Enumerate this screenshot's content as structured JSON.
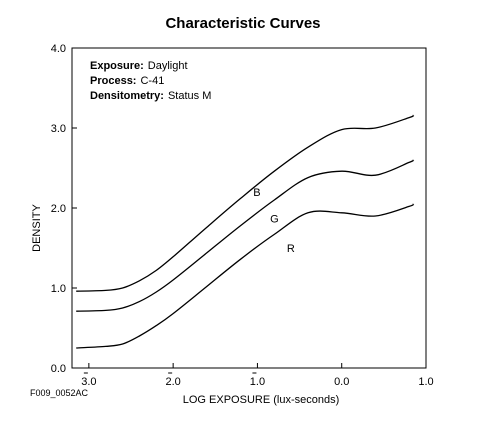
{
  "chart_data": {
    "type": "line",
    "title": "Characteristic Curves",
    "xlabel": "LOG EXPOSURE (lux-seconds)",
    "ylabel": "DENSITY",
    "xlim": [
      -3.2,
      1.0
    ],
    "ylim": [
      0.0,
      4.0
    ],
    "x_ticks": [
      -3.0,
      -2.0,
      -1.0,
      0.0,
      1.0
    ],
    "x_tick_labels": [
      "3.0",
      "2.0",
      "1.0",
      "0.0",
      "1.0"
    ],
    "x_tick_bar": [
      true,
      true,
      true,
      false,
      false
    ],
    "y_ticks": [
      0.0,
      1.0,
      2.0,
      3.0,
      4.0
    ],
    "y_tick_labels": [
      "0.0",
      "1.0",
      "2.0",
      "3.0",
      "4.0"
    ],
    "grid": false,
    "info": [
      {
        "key": "Exposure:",
        "value": "Daylight"
      },
      {
        "key": "Process:",
        "value": "C-41"
      },
      {
        "key": "Densitometry:",
        "value": "Status M"
      }
    ],
    "figure_id": "F009_0052AC",
    "series": [
      {
        "name": "B",
        "color": "#000000",
        "label_at": [
          -1.05,
          2.15
        ],
        "points": [
          [
            -3.15,
            0.96
          ],
          [
            -2.8,
            0.97
          ],
          [
            -2.6,
            1.0
          ],
          [
            -2.4,
            1.09
          ],
          [
            -2.2,
            1.22
          ],
          [
            -2.0,
            1.39
          ],
          [
            -1.6,
            1.76
          ],
          [
            -1.2,
            2.12
          ],
          [
            -0.8,
            2.46
          ],
          [
            -0.4,
            2.76
          ],
          [
            0.0,
            2.98
          ],
          [
            0.4,
            3.0
          ],
          [
            0.8,
            3.13
          ],
          [
            0.85,
            3.16
          ]
        ]
      },
      {
        "name": "G",
        "color": "#000000",
        "label_at": [
          -0.85,
          1.82
        ],
        "points": [
          [
            -3.15,
            0.71
          ],
          [
            -2.8,
            0.72
          ],
          [
            -2.6,
            0.75
          ],
          [
            -2.4,
            0.83
          ],
          [
            -2.2,
            0.95
          ],
          [
            -2.0,
            1.1
          ],
          [
            -1.6,
            1.44
          ],
          [
            -1.2,
            1.78
          ],
          [
            -0.8,
            2.1
          ],
          [
            -0.4,
            2.38
          ],
          [
            0.0,
            2.46
          ],
          [
            0.4,
            2.41
          ],
          [
            0.8,
            2.57
          ],
          [
            0.85,
            2.6
          ]
        ]
      },
      {
        "name": "R",
        "color": "#000000",
        "label_at": [
          -0.65,
          1.45
        ],
        "points": [
          [
            -3.15,
            0.25
          ],
          [
            -2.8,
            0.27
          ],
          [
            -2.6,
            0.3
          ],
          [
            -2.4,
            0.4
          ],
          [
            -2.2,
            0.53
          ],
          [
            -2.0,
            0.68
          ],
          [
            -1.6,
            1.02
          ],
          [
            -1.2,
            1.36
          ],
          [
            -0.8,
            1.67
          ],
          [
            -0.4,
            1.94
          ],
          [
            0.0,
            1.94
          ],
          [
            0.4,
            1.9
          ],
          [
            0.8,
            2.02
          ],
          [
            0.85,
            2.05
          ]
        ]
      }
    ]
  }
}
